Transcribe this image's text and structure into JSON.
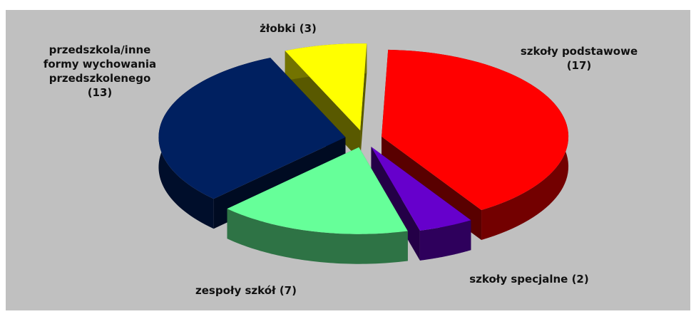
{
  "chart_data": {
    "type": "pie",
    "categories": [
      "szkoły podstawowe",
      "szkoły specjalne",
      "zespoły szkół",
      "przedszkola/inne formy wychowania przedszkolenego",
      "żłobki"
    ],
    "values": [
      17,
      2,
      7,
      13,
      3
    ],
    "value_labels": [
      "(17)",
      "(2)",
      "(7)",
      "(13)",
      "(3)"
    ],
    "colors": [
      "#ff0000",
      "#6600cc",
      "#66ff99",
      "#002060",
      "#ffff00"
    ]
  }
}
